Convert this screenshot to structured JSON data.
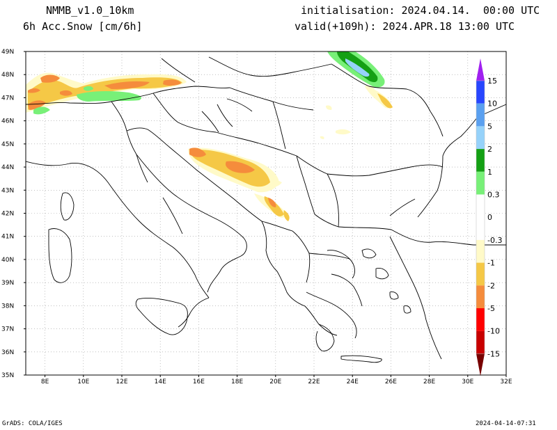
{
  "header": {
    "model": "NMMB_v1.0_10km",
    "field": "6h Acc.Snow [cm/6h]",
    "init": "initialisation: 2024.04.14.  00:00 UTC",
    "valid": "valid(+109h): 2024.APR.18 13:00 UTC"
  },
  "map": {
    "lat_labels": [
      "49N",
      "48N",
      "47N",
      "46N",
      "45N",
      "44N",
      "43N",
      "42N",
      "41N",
      "40N",
      "39N",
      "38N",
      "37N",
      "36N",
      "35N"
    ],
    "lon_labels": [
      "8E",
      "10E",
      "12E",
      "14E",
      "16E",
      "18E",
      "20E",
      "22E",
      "24E",
      "26E",
      "28E",
      "30E",
      "32E"
    ]
  },
  "colorbar": {
    "labels": [
      "15",
      "10",
      "5",
      "2",
      "1",
      "0.3",
      "0",
      "-0.3",
      "-1",
      "-2",
      "-5",
      "-10",
      "-15"
    ],
    "colors": [
      "#a020f0",
      "#2846ff",
      "#5aa0f0",
      "#96d2fa",
      "#14a014",
      "#78f078",
      "#ffffff",
      "#ffffff",
      "#fffac8",
      "#f5c846",
      "#f58c3c",
      "#ff0000",
      "#c80000",
      "#780000"
    ]
  },
  "footer": {
    "left": "GrADS: COLA/IGES",
    "right": "2024-04-14-07:31"
  }
}
